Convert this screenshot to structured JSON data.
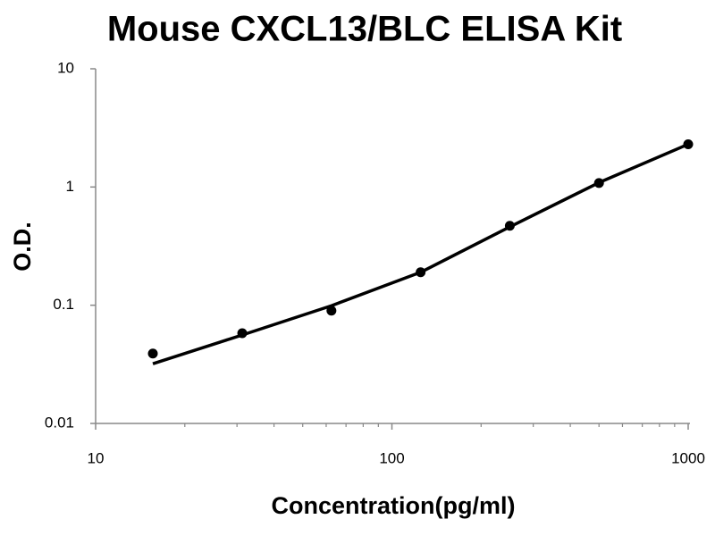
{
  "chart_data": {
    "type": "scatter",
    "title": "Mouse CXCL13/BLC ELISA Kit",
    "x_label": "Concentration(pg/ml)",
    "y_label": "O.D.",
    "x": [
      15.6,
      31.25,
      62.5,
      125,
      250,
      500,
      1000
    ],
    "series": [
      {
        "style": "markers",
        "color": "#000000",
        "values": [
          0.039,
          0.058,
          0.09,
          0.19,
          0.47,
          1.08,
          2.3
        ]
      },
      {
        "style": "line",
        "color": "#000000",
        "values": [
          0.032,
          0.056,
          0.099,
          0.19,
          0.46,
          1.09,
          2.3
        ]
      }
    ],
    "xlog": true,
    "ylog": true,
    "grid": false,
    "xlim": [
      10,
      1000
    ],
    "ylim": [
      0.01,
      10
    ],
    "xticks": [
      10,
      100,
      1000
    ],
    "yticks": [
      0.01,
      0.1,
      1,
      10
    ],
    "xminorticks": [
      20,
      30,
      40,
      50,
      60,
      70,
      80,
      90,
      200,
      300,
      400,
      500,
      600,
      700,
      800,
      900
    ]
  }
}
